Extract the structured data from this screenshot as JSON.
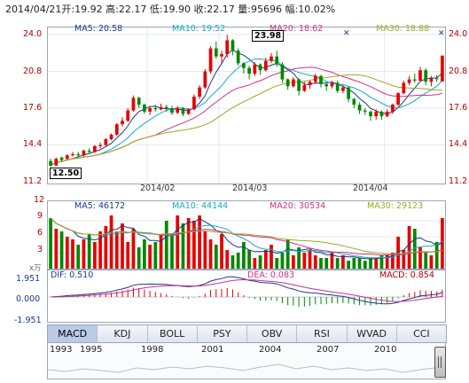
{
  "header": {
    "date": "2014/04/21",
    "open_label": "开:",
    "open": "19.92",
    "high_label": "高:",
    "high": "22.17",
    "low_label": "低:",
    "low": "19.90",
    "close_label": "收:",
    "close": "22.17",
    "vol_label": "量:",
    "vol": "95696",
    "chg_label": "幅:",
    "chg": "10.02%"
  },
  "price_panel": {
    "ma5": "MA5: 20.58",
    "ma10": "MA10: 19.52",
    "ma20": "MA20: 18.62",
    "ma30": "MA30: 18.88",
    "high_marker": "23.98",
    "low_marker": "12.50",
    "y_ticks_left": [
      "24.0",
      "20.8",
      "17.6",
      "14.4",
      "11.2"
    ],
    "y_ticks_right": [
      "24.0",
      "20.8",
      "17.6",
      "14.4",
      "11.2"
    ],
    "x_ticks": [
      "2014/02",
      "2014/03",
      "2014/04"
    ]
  },
  "volume_panel": {
    "ma5": "MA5: 46172",
    "ma10": "MA10: 44144",
    "ma20": "MA20: 30534",
    "ma30": "MA30: 29123",
    "y_ticks": [
      "12",
      "9",
      "6",
      "3"
    ],
    "unit": "x万"
  },
  "macd_panel": {
    "dif": "DIF: 0.510",
    "dea": "DEA: 0.083",
    "macd": "MACD: 0.854",
    "y_ticks": [
      "1.951",
      "0.000",
      "-1.951"
    ]
  },
  "tabs": [
    "MACD",
    "KDJ",
    "BOLL",
    "PSY",
    "OBV",
    "RSI",
    "WVAD",
    "CCI"
  ],
  "active_tab": "MACD",
  "navigator": {
    "years": [
      "1993",
      "1995",
      "1998",
      "2001",
      "2004",
      "2007",
      "2010"
    ]
  },
  "colors": {
    "up": "#e60000",
    "down": "#008800",
    "ma5": "#1a3a8a",
    "ma10": "#17a8c8",
    "ma20": "#d0308a",
    "ma30": "#a0a820"
  },
  "chart_data": {
    "type": "candlestick",
    "ylim": [
      11.2,
      24.0
    ],
    "candles": [
      [
        13.0,
        12.6,
        13.2,
        12.5
      ],
      [
        12.6,
        13.2,
        13.3,
        12.6
      ],
      [
        13.3,
        13.1,
        13.4,
        13.0
      ],
      [
        13.2,
        13.5,
        13.6,
        13.1
      ],
      [
        13.5,
        13.6,
        13.8,
        13.4
      ],
      [
        13.6,
        13.5,
        13.8,
        13.3
      ],
      [
        13.5,
        13.9,
        14.0,
        13.4
      ],
      [
        13.9,
        13.8,
        14.1,
        13.7
      ],
      [
        13.8,
        14.3,
        14.4,
        13.7
      ],
      [
        14.3,
        14.4,
        14.6,
        14.1
      ],
      [
        14.4,
        14.9,
        15.0,
        14.3
      ],
      [
        14.9,
        15.3,
        15.4,
        14.8
      ],
      [
        15.3,
        16.2,
        16.3,
        15.2
      ],
      [
        16.2,
        16.5,
        16.8,
        16.0
      ],
      [
        16.5,
        17.4,
        17.6,
        16.4
      ],
      [
        17.4,
        18.5,
        18.7,
        17.3
      ],
      [
        18.5,
        17.9,
        18.6,
        17.6
      ],
      [
        17.9,
        17.3,
        18.0,
        17.1
      ],
      [
        17.3,
        17.6,
        17.8,
        17.0
      ],
      [
        17.6,
        17.5,
        17.9,
        17.3
      ],
      [
        17.5,
        17.7,
        18.0,
        17.4
      ],
      [
        17.7,
        17.6,
        17.9,
        17.3
      ],
      [
        17.6,
        17.2,
        17.8,
        17.0
      ],
      [
        17.2,
        17.6,
        17.8,
        17.1
      ],
      [
        17.6,
        17.1,
        17.7,
        16.9
      ],
      [
        17.1,
        17.5,
        17.6,
        17.0
      ],
      [
        17.5,
        18.6,
        18.8,
        17.4
      ],
      [
        18.6,
        19.4,
        19.6,
        18.4
      ],
      [
        19.4,
        20.8,
        21.0,
        19.3
      ],
      [
        20.8,
        22.8,
        23.0,
        20.6
      ],
      [
        22.8,
        22.1,
        23.4,
        21.9
      ],
      [
        22.1,
        22.3,
        22.6,
        21.5
      ],
      [
        22.3,
        23.5,
        23.98,
        22.0
      ],
      [
        23.5,
        22.6,
        23.6,
        22.2
      ],
      [
        22.6,
        21.5,
        22.8,
        21.3
      ],
      [
        21.5,
        21.1,
        21.6,
        20.6
      ],
      [
        21.1,
        20.6,
        21.3,
        20.1
      ],
      [
        20.6,
        21.4,
        21.6,
        20.4
      ],
      [
        21.4,
        20.9,
        21.5,
        20.5
      ],
      [
        20.9,
        21.7,
        22.0,
        20.8
      ],
      [
        21.7,
        22.1,
        22.4,
        21.5
      ],
      [
        22.1,
        21.4,
        22.6,
        21.2
      ],
      [
        21.4,
        20.1,
        21.6,
        19.8
      ],
      [
        20.1,
        19.5,
        20.2,
        19.2
      ],
      [
        19.5,
        20.1,
        20.3,
        19.4
      ],
      [
        20.1,
        19.1,
        20.2,
        18.7
      ],
      [
        19.1,
        19.6,
        19.9,
        19.0
      ],
      [
        19.6,
        19.9,
        20.0,
        19.3
      ],
      [
        19.9,
        20.4,
        20.6,
        19.7
      ],
      [
        20.4,
        19.7,
        20.5,
        19.4
      ],
      [
        19.7,
        19.5,
        19.8,
        19.1
      ],
      [
        19.5,
        19.8,
        20.0,
        19.3
      ],
      [
        19.8,
        19.1,
        20.0,
        18.9
      ],
      [
        19.1,
        19.4,
        19.6,
        18.9
      ],
      [
        19.4,
        18.4,
        19.5,
        18.1
      ],
      [
        18.4,
        17.9,
        18.5,
        17.6
      ],
      [
        17.9,
        17.4,
        18.1,
        17.1
      ],
      [
        17.4,
        17.3,
        17.6,
        17.0
      ],
      [
        17.3,
        16.9,
        17.4,
        16.5
      ],
      [
        16.9,
        17.3,
        17.5,
        16.6
      ],
      [
        17.3,
        16.9,
        17.4,
        16.6
      ],
      [
        16.9,
        17.3,
        17.5,
        16.8
      ],
      [
        17.3,
        17.9,
        18.0,
        17.1
      ],
      [
        17.9,
        18.9,
        19.0,
        17.8
      ],
      [
        18.9,
        19.8,
        20.0,
        18.8
      ],
      [
        19.8,
        20.1,
        20.4,
        19.6
      ],
      [
        20.1,
        20.0,
        20.6,
        19.8
      ],
      [
        20.0,
        20.9,
        21.2,
        19.9
      ],
      [
        20.9,
        19.9,
        21.1,
        19.6
      ],
      [
        19.9,
        20.2,
        20.4,
        19.5
      ],
      [
        20.2,
        20.15,
        20.5,
        19.9
      ],
      [
        19.92,
        22.17,
        22.17,
        19.9
      ]
    ],
    "volume": [
      9.5,
      7.5,
      7.0,
      6.0,
      5.5,
      4.5,
      5.5,
      6.5,
      5.0,
      7.0,
      8.0,
      10.0,
      7.0,
      8.5,
      5.0,
      7.5,
      4.0,
      5.5,
      4.5,
      5.0,
      6.5,
      9.0,
      6.5,
      10.0,
      8.5,
      9.5,
      9.0,
      10.0,
      7.0,
      5.5,
      4.5,
      6.5,
      3.5,
      2.5,
      3.0,
      5.0,
      3.5,
      2.0,
      2.5,
      3.5,
      4.5,
      2.0,
      3.0,
      5.5,
      2.5,
      4.0,
      3.0,
      3.5,
      2.5,
      2.0,
      2.0,
      3.0,
      2.0,
      2.5,
      1.5,
      2.0,
      2.0,
      1.5,
      2.0,
      2.0,
      2.5,
      2.5,
      3.0,
      6.0,
      3.5,
      8.0,
      7.5,
      4.0,
      3.0,
      2.5,
      5.0,
      9.5
    ],
    "volume_ylim": [
      0,
      12
    ]
  }
}
